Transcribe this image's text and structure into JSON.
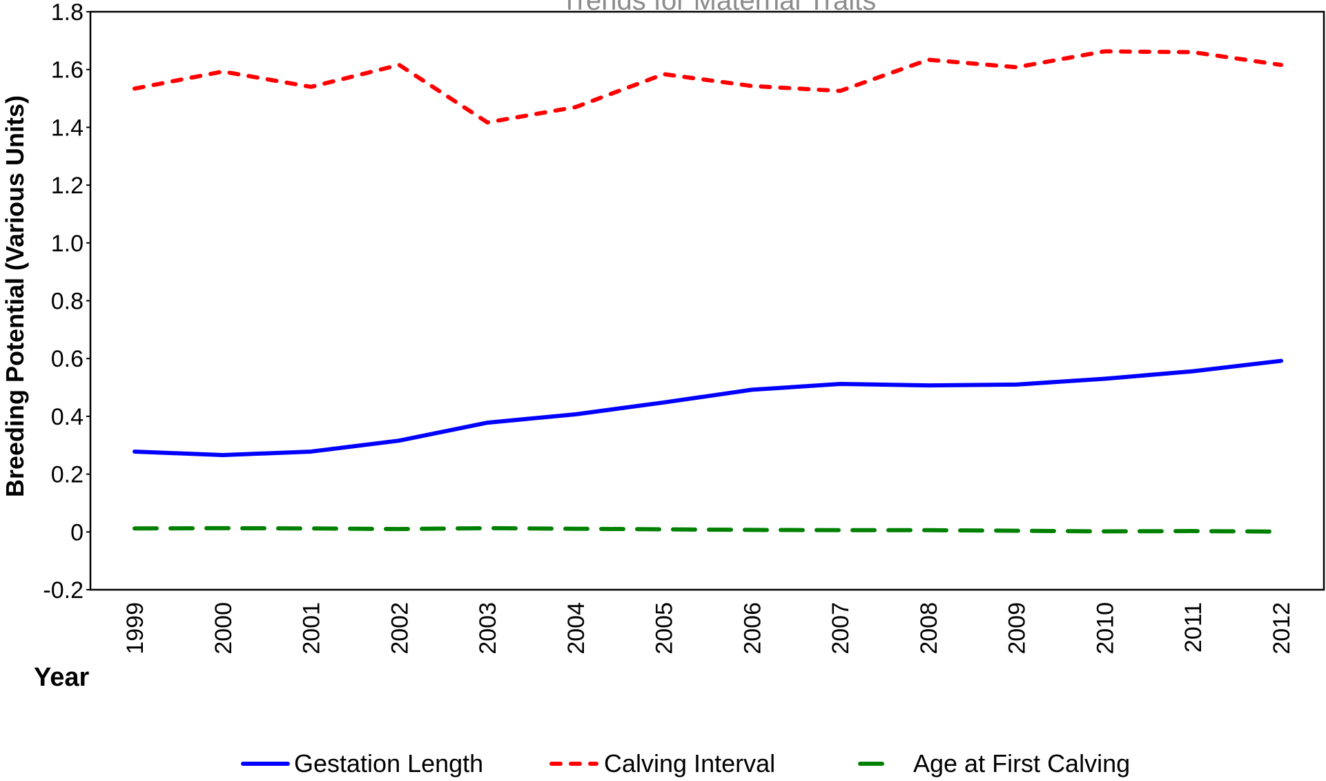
{
  "chart_data": {
    "type": "line",
    "title": "Trends for Maternal Traits",
    "x_label": "Year",
    "y_label": "Breeding Potential (Various Units)",
    "categories": [
      "1999",
      "2000",
      "2001",
      "2002",
      "2003",
      "2004",
      "2005",
      "2006",
      "2007",
      "2008",
      "2009",
      "2010",
      "2011",
      "2012"
    ],
    "series": [
      {
        "name": "Gestation Length",
        "color": "#0000ff",
        "line_style": "solid",
        "values": [
          0.278,
          0.266,
          0.278,
          0.316,
          0.378,
          0.407,
          0.448,
          0.492,
          0.512,
          0.507,
          0.51,
          0.53,
          0.556,
          0.592
        ]
      },
      {
        "name": "Calving Interval",
        "color": "#ff0000",
        "line_style": "dotted",
        "values": [
          1.534,
          1.593,
          1.54,
          1.616,
          1.417,
          1.47,
          1.584,
          1.543,
          1.526,
          1.634,
          1.608,
          1.663,
          1.66,
          1.616
        ]
      },
      {
        "name": "Age at First Calving",
        "color": "#008000",
        "line_style": "dashed",
        "values": [
          0.012,
          0.013,
          0.012,
          0.01,
          0.013,
          0.011,
          0.009,
          0.007,
          0.006,
          0.006,
          0.004,
          0.002,
          0.003,
          0.001
        ]
      }
    ],
    "ylim": [
      -0.2,
      1.8
    ],
    "yticks": [
      -0.2,
      0,
      0.2,
      0.4,
      0.6,
      0.8,
      {
        "value": 1,
        "label": "1.0"
      },
      1.2,
      1.4,
      1.6,
      1.8
    ],
    "grid": false,
    "legend": "bottom"
  }
}
